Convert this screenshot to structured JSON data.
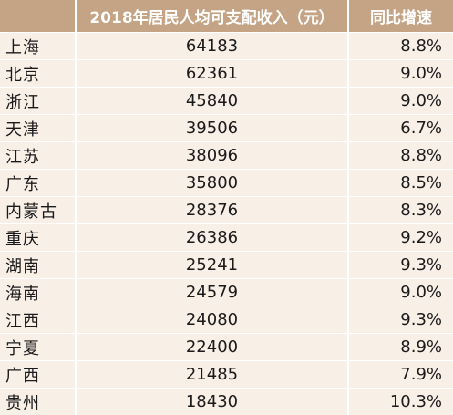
{
  "header": {
    "col_region": "",
    "col_income": "2018年居民人均可支配收入（元）",
    "col_growth": "同比增速"
  },
  "rows": [
    {
      "region": "上海",
      "income": "64183",
      "growth": "8.8%"
    },
    {
      "region": "北京",
      "income": "62361",
      "growth": "9.0%"
    },
    {
      "region": "浙江",
      "income": "45840",
      "growth": "9.0%"
    },
    {
      "region": "天津",
      "income": "39506",
      "growth": "6.7%"
    },
    {
      "region": "江苏",
      "income": "38096",
      "growth": "8.8%"
    },
    {
      "region": "广东",
      "income": "35800",
      "growth": "8.5%"
    },
    {
      "region": "内蒙古",
      "income": "28376",
      "growth": "8.3%"
    },
    {
      "region": "重庆",
      "income": "26386",
      "growth": "9.2%"
    },
    {
      "region": "湖南",
      "income": "25241",
      "growth": "9.3%"
    },
    {
      "region": "海南",
      "income": "24579",
      "growth": "9.0%"
    },
    {
      "region": "江西",
      "income": "24080",
      "growth": "9.3%"
    },
    {
      "region": "宁夏",
      "income": "22400",
      "growth": "8.9%"
    },
    {
      "region": "广西",
      "income": "21485",
      "growth": "7.9%"
    },
    {
      "region": "贵州",
      "income": "18430",
      "growth": "10.3%"
    }
  ],
  "colors": {
    "header_bg": "#c4a484",
    "row_bg": "#f8efe7",
    "text": "#1a1a1a"
  }
}
